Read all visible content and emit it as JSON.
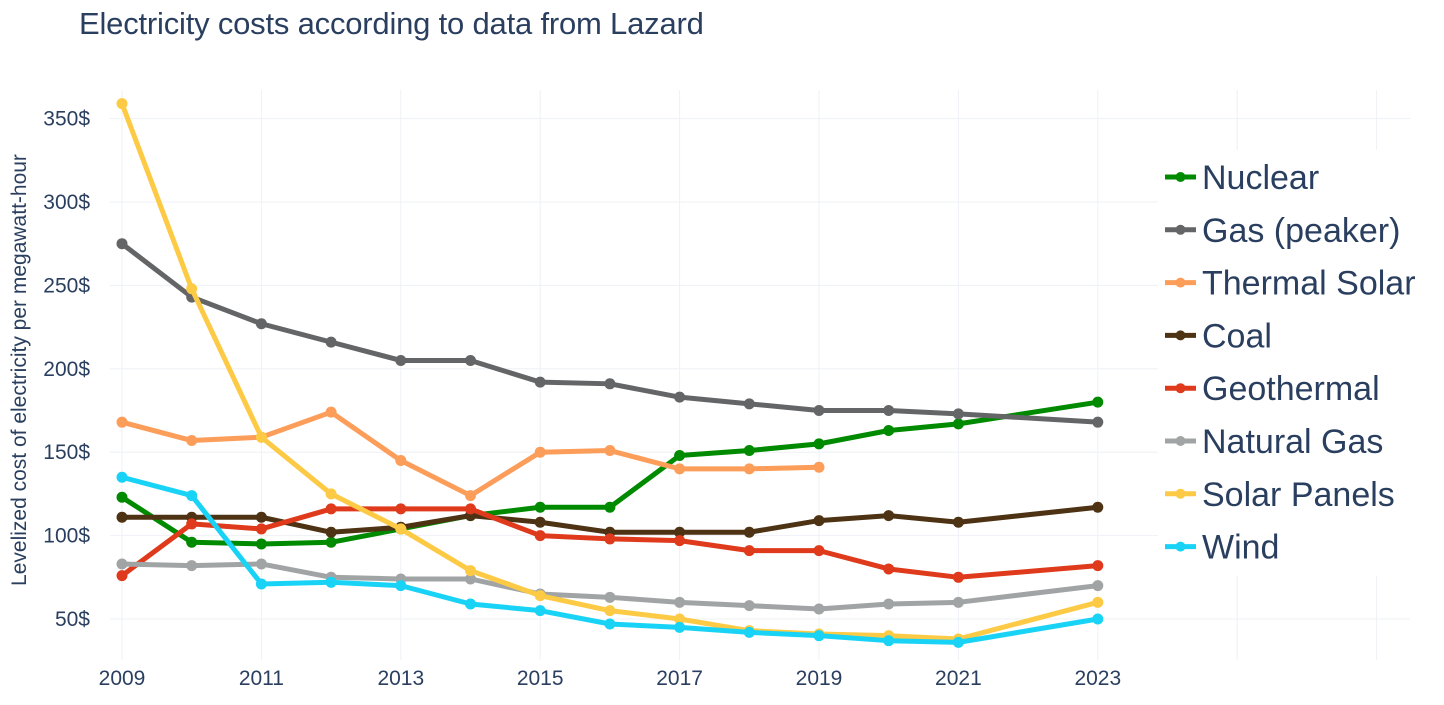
{
  "chart_data": {
    "type": "line",
    "title": "Electricity costs according to data from Lazard",
    "xlabel": "",
    "ylabel": "Levelized cost of electricity per megawatt-hour",
    "xlim": [
      2009,
      2027.5
    ],
    "ylim": [
      36,
      364
    ],
    "x_ticks": [
      2009,
      2011,
      2013,
      2015,
      2017,
      2019,
      2021,
      2023
    ],
    "x_tick_labels": [
      "2009",
      "2011",
      "2013",
      "2015",
      "2017",
      "2019",
      "2021",
      "2023"
    ],
    "x_grid": [
      2009,
      2011,
      2013,
      2015,
      2017,
      2019,
      2021,
      2023,
      2025,
      2027
    ],
    "y_ticks": [
      50,
      100,
      150,
      200,
      250,
      300,
      350
    ],
    "y_tick_labels": [
      "50$",
      "100$",
      "150$",
      "200$",
      "250$",
      "300$",
      "350$"
    ],
    "grid": true,
    "legend_position": "right",
    "series": [
      {
        "name": "Nuclear",
        "color": "#008a00",
        "x": [
          2009,
          2010,
          2011,
          2012,
          2013,
          2014,
          2015,
          2016,
          2017,
          2018,
          2019,
          2020,
          2021,
          2023
        ],
        "values": [
          123,
          96,
          95,
          96,
          104,
          112,
          117,
          117,
          148,
          151,
          155,
          163,
          167,
          180
        ]
      },
      {
        "name": "Gas (peaker)",
        "color": "#646567",
        "x": [
          2009,
          2010,
          2011,
          2012,
          2013,
          2014,
          2015,
          2016,
          2017,
          2018,
          2019,
          2020,
          2021,
          2023
        ],
        "values": [
          275,
          243,
          227,
          216,
          205,
          205,
          192,
          191,
          183,
          179,
          175,
          175,
          173,
          168
        ]
      },
      {
        "name": "Thermal Solar",
        "color": "#fc9d5a",
        "x": [
          2009,
          2010,
          2011,
          2012,
          2013,
          2014,
          2015,
          2016,
          2017,
          2018,
          2019
        ],
        "values": [
          168,
          157,
          159,
          174,
          145,
          124,
          150,
          151,
          140,
          140,
          141
        ]
      },
      {
        "name": "Coal",
        "color": "#4d3213",
        "x": [
          2009,
          2010,
          2011,
          2012,
          2013,
          2014,
          2015,
          2016,
          2017,
          2018,
          2019,
          2020,
          2021,
          2023
        ],
        "values": [
          111,
          111,
          111,
          102,
          105,
          112,
          108,
          102,
          102,
          102,
          109,
          112,
          108,
          117
        ]
      },
      {
        "name": "Geothermal",
        "color": "#de3a1b",
        "x": [
          2009,
          2010,
          2011,
          2012,
          2013,
          2014,
          2015,
          2016,
          2017,
          2018,
          2019,
          2020,
          2021,
          2023
        ],
        "values": [
          76,
          107,
          104,
          116,
          116,
          116,
          100,
          98,
          97,
          91,
          91,
          80,
          75,
          82
        ]
      },
      {
        "name": "Natural Gas",
        "color": "#a1a4a5",
        "x": [
          2009,
          2010,
          2011,
          2012,
          2013,
          2014,
          2015,
          2016,
          2017,
          2018,
          2019,
          2020,
          2021,
          2023
        ],
        "values": [
          83,
          82,
          83,
          75,
          74,
          74,
          65,
          63,
          60,
          58,
          56,
          59,
          60,
          70
        ]
      },
      {
        "name": "Solar Panels",
        "color": "#fdca45",
        "x": [
          2009,
          2010,
          2011,
          2012,
          2013,
          2014,
          2015,
          2016,
          2017,
          2018,
          2019,
          2020,
          2021,
          2023
        ],
        "values": [
          359,
          248,
          159,
          125,
          104,
          79,
          64,
          55,
          50,
          43,
          41,
          40,
          38,
          60
        ]
      },
      {
        "name": "Wind",
        "color": "#18d3f5",
        "x": [
          2009,
          2010,
          2011,
          2012,
          2013,
          2014,
          2015,
          2016,
          2017,
          2018,
          2019,
          2020,
          2021,
          2023
        ],
        "values": [
          135,
          124,
          71,
          72,
          70,
          59,
          55,
          47,
          45,
          42,
          40,
          37,
          36,
          50
        ]
      }
    ]
  }
}
